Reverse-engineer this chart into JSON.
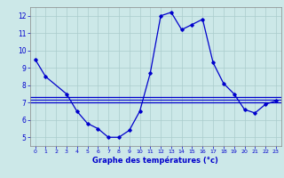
{
  "xlabel": "Graphe des températures (°c)",
  "bg_color": "#cce8e8",
  "grid_color": "#aaccaa",
  "line_color": "#0000cc",
  "hours": [
    0,
    1,
    2,
    3,
    4,
    5,
    6,
    7,
    8,
    9,
    10,
    11,
    12,
    13,
    14,
    15,
    16,
    17,
    18,
    19,
    20,
    21,
    22,
    23
  ],
  "temp_main": [
    9.5,
    8.5,
    null,
    7.5,
    6.5,
    5.8,
    5.5,
    5.0,
    5.0,
    5.4,
    6.5,
    8.7,
    12.0,
    12.2,
    11.2,
    11.5,
    11.8,
    9.3,
    8.1,
    7.5,
    6.6,
    6.4,
    6.9,
    7.1
  ],
  "hline1": 7.3,
  "hline2": 7.0,
  "hline3": 7.15,
  "ylim": [
    4.5,
    12.5
  ],
  "yticks": [
    5,
    6,
    7,
    8,
    9,
    10,
    11,
    12
  ],
  "xticks": [
    0,
    1,
    2,
    3,
    4,
    5,
    6,
    7,
    8,
    9,
    10,
    11,
    12,
    13,
    14,
    15,
    16,
    17,
    18,
    19,
    20,
    21,
    22,
    23
  ]
}
